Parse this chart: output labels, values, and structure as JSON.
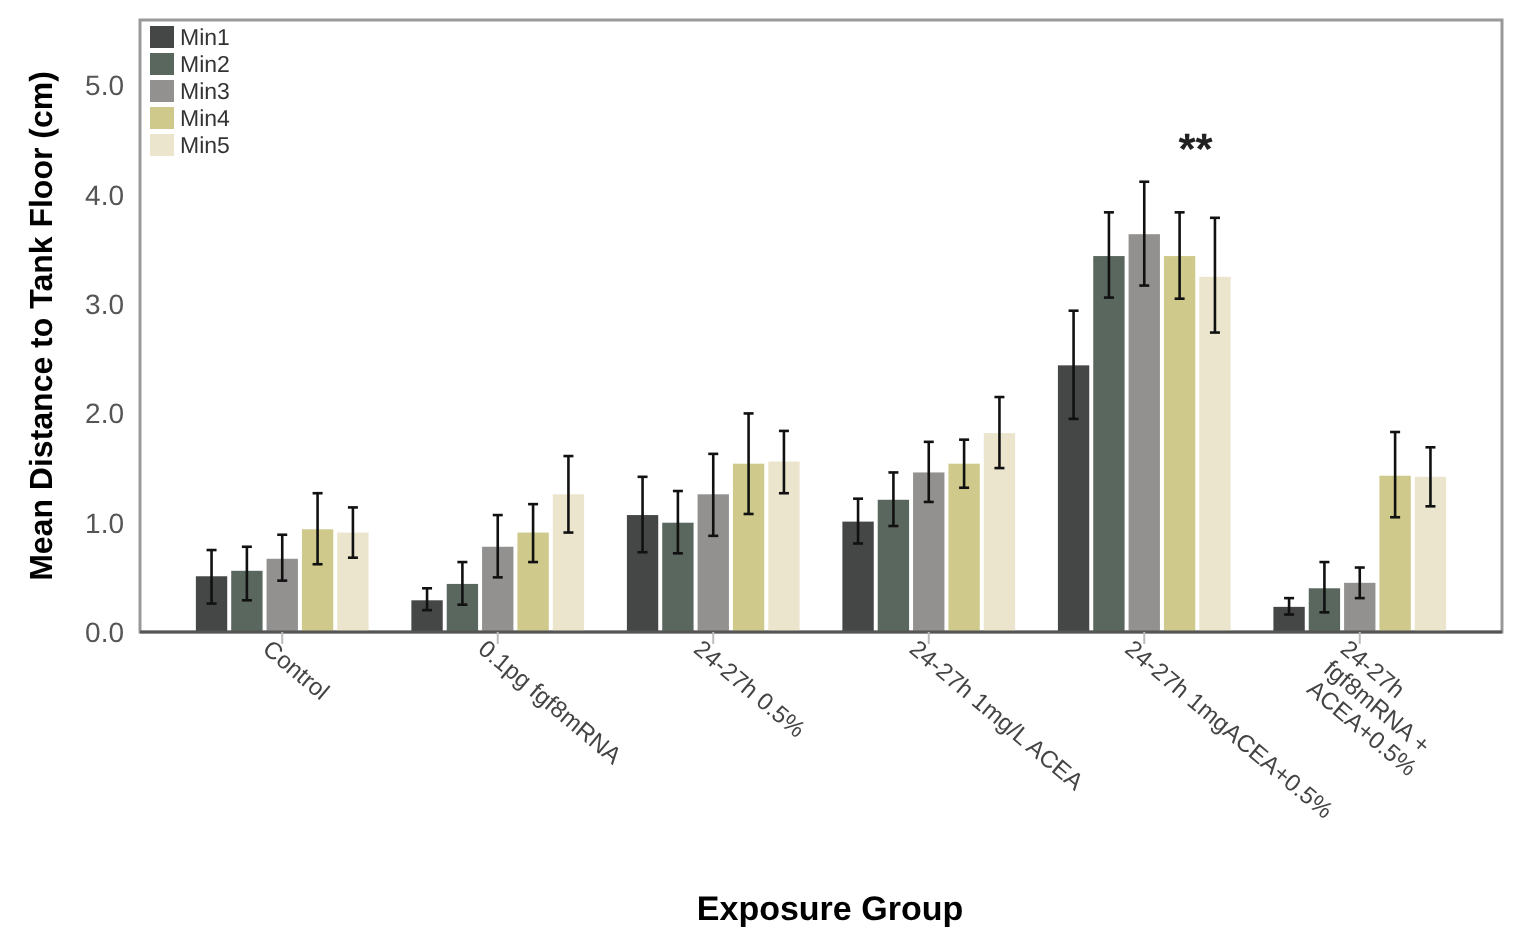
{
  "chart_data": {
    "type": "bar",
    "xlabel": "Exposure Group",
    "ylabel": "Mean Distance to Tank Floor (cm)",
    "categories": [
      "Control",
      "0.1pg fgf8mRNA",
      "24-27h 0.5%",
      "24-27h 1mg/L ACEA",
      "24-27h 1mgACEA+0.5%",
      "24-27h fgf8mRNA + ACEA+0.5%"
    ],
    "ylim": [
      0,
      5.6
    ],
    "yticks": [
      {
        "value": 0,
        "label": "0.0"
      },
      {
        "value": 1,
        "label": "1.0"
      },
      {
        "value": 2,
        "label": "2.0"
      },
      {
        "value": 3,
        "label": "3.0"
      },
      {
        "value": 4,
        "label": "4.0"
      },
      {
        "value": 5,
        "label": "5.0"
      }
    ],
    "grid": false,
    "legend": "top left",
    "series": [
      {
        "name": "Min1",
        "color": "#454646",
        "values": [
          0.51,
          0.29,
          1.07,
          1.01,
          2.44,
          0.23
        ],
        "errors": [
          [
            0.26,
            0.75
          ],
          [
            0.2,
            0.4
          ],
          [
            0.73,
            1.42
          ],
          [
            0.81,
            1.22
          ],
          [
            1.95,
            2.94
          ],
          [
            0.16,
            0.31
          ]
        ]
      },
      {
        "name": "Min2",
        "color": "#5a675e",
        "values": [
          0.56,
          0.44,
          1.0,
          1.21,
          3.44,
          0.4
        ],
        "errors": [
          [
            0.29,
            0.78
          ],
          [
            0.25,
            0.64
          ],
          [
            0.72,
            1.29
          ],
          [
            0.97,
            1.46
          ],
          [
            3.06,
            3.84
          ],
          [
            0.18,
            0.64
          ]
        ]
      },
      {
        "name": "Min3",
        "color": "#939090",
        "values": [
          0.67,
          0.78,
          1.26,
          1.46,
          3.64,
          0.45
        ],
        "errors": [
          [
            0.47,
            0.89
          ],
          [
            0.5,
            1.07
          ],
          [
            0.88,
            1.63
          ],
          [
            1.19,
            1.74
          ],
          [
            3.17,
            4.12
          ],
          [
            0.31,
            0.59
          ]
        ]
      },
      {
        "name": "Min4",
        "color": "#cfc98b",
        "values": [
          0.94,
          0.91,
          1.54,
          1.54,
          3.44,
          1.43
        ],
        "errors": [
          [
            0.62,
            1.27
          ],
          [
            0.64,
            1.17
          ],
          [
            1.08,
            2.0
          ],
          [
            1.32,
            1.76
          ],
          [
            3.05,
            3.84
          ],
          [
            1.05,
            1.83
          ]
        ]
      },
      {
        "name": "Min5",
        "color": "#ece5cd",
        "values": [
          0.91,
          1.26,
          1.56,
          1.82,
          3.25,
          1.42
        ],
        "errors": [
          [
            0.68,
            1.14
          ],
          [
            0.91,
            1.61
          ],
          [
            1.27,
            1.84
          ],
          [
            1.5,
            2.15
          ],
          [
            2.74,
            3.79
          ],
          [
            1.15,
            1.69
          ]
        ]
      }
    ],
    "annotations": [
      "**"
    ]
  }
}
